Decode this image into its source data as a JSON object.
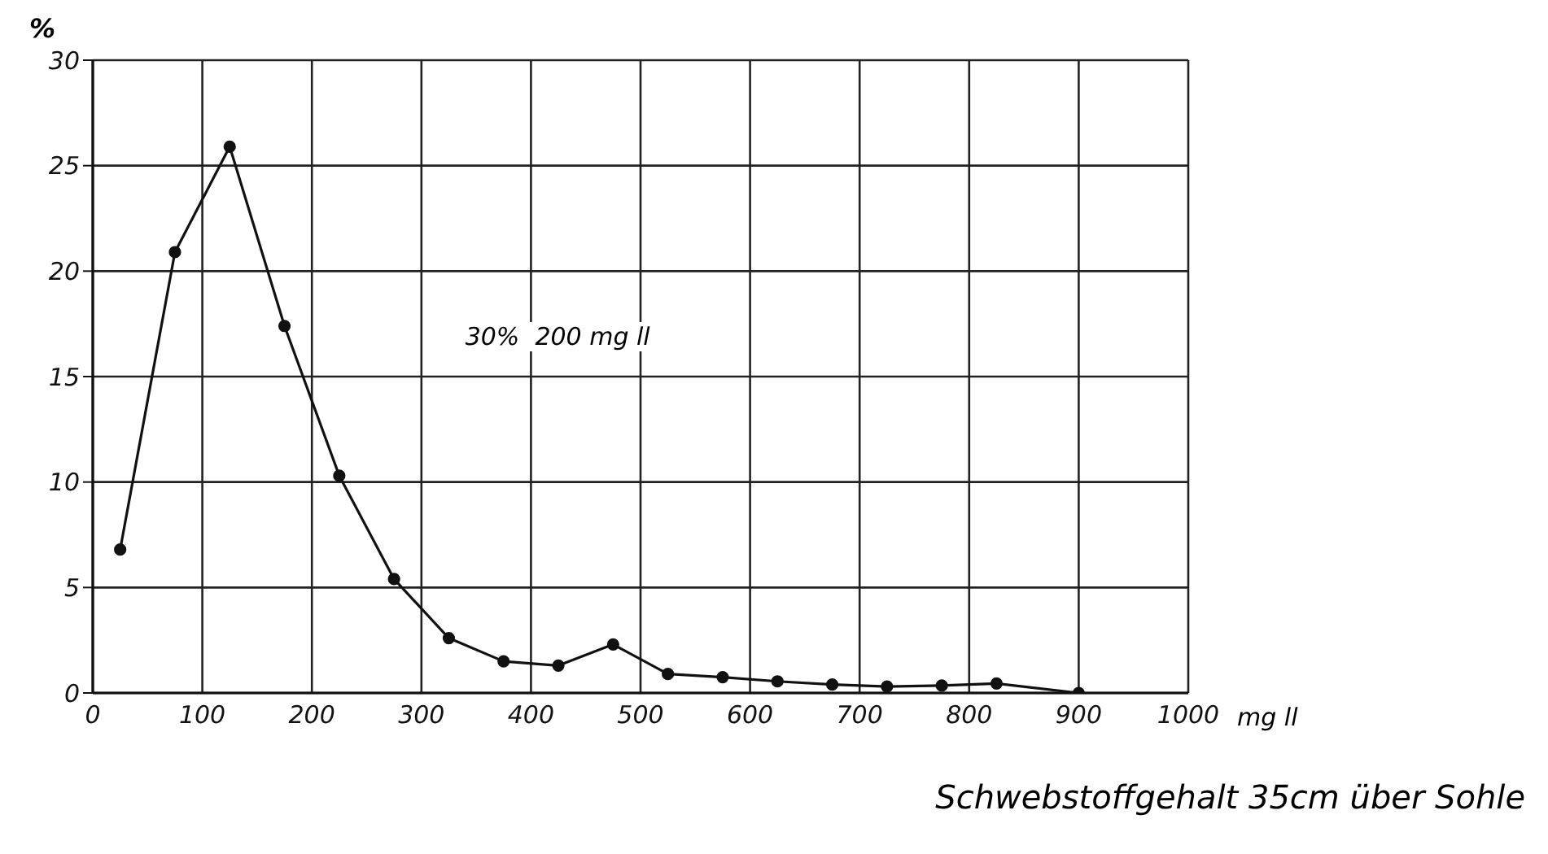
{
  "chart_data": {
    "type": "line",
    "xlabel": "mg ll",
    "ylabel": "%",
    "x": [
      25,
      75,
      125,
      175,
      225,
      275,
      325,
      375,
      425,
      475,
      525,
      575,
      625,
      675,
      725,
      775,
      825,
      900
    ],
    "series": [
      {
        "color": "#111111",
        "values": [
          6.8,
          20.9,
          25.9,
          17.4,
          10.3,
          5.4,
          2.6,
          1.5,
          1.3,
          2.3,
          0.9,
          0.75,
          0.55,
          0.4,
          0.3,
          0.35,
          0.45,
          0
        ]
      }
    ],
    "xlim": [
      0,
      1000
    ],
    "xticks": [
      0,
      100,
      200,
      300,
      400,
      500,
      600,
      700,
      800,
      900,
      1000
    ],
    "ylim": [
      0,
      30
    ],
    "yticks": [
      0,
      5,
      10,
      15,
      20,
      25,
      30
    ],
    "grid": true,
    "marker": "circle",
    "line_style": "solid",
    "annotations": [
      "30%  200 mg ll",
      "Schwebstoffgehalt 35cm über Sohle"
    ]
  }
}
